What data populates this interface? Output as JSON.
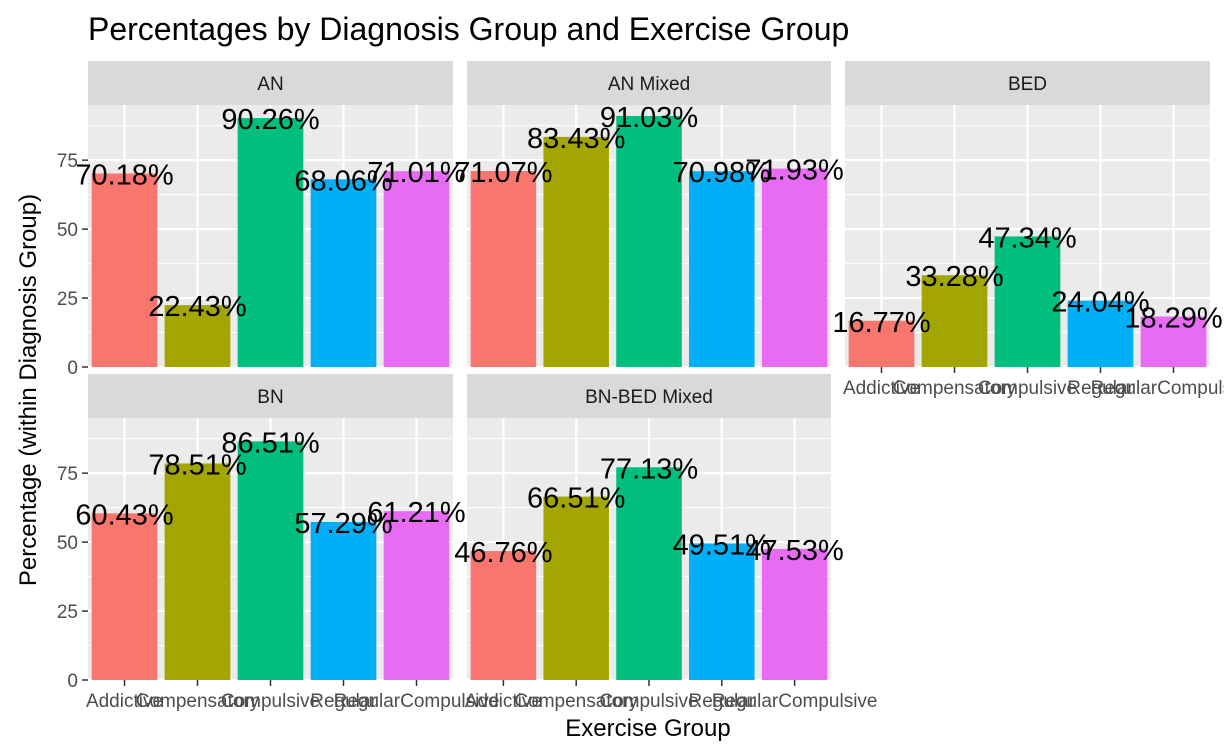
{
  "chart_data": {
    "type": "bar",
    "title": "Percentages by Diagnosis Group and Exercise Group",
    "xlabel": "Exercise Group",
    "ylabel": "Percentage (within Diagnosis Group)",
    "ylim": [
      0,
      95
    ],
    "yticks": [
      0,
      25,
      50,
      75
    ],
    "categories": [
      "Addictive",
      "Compensatory",
      "Compulsive",
      "Regular",
      "RegularCompulsive"
    ],
    "colors": [
      "#F8766D",
      "#A3A500",
      "#00BF7D",
      "#00B0F6",
      "#E76BF3"
    ],
    "panel_background": "#EBEBEB",
    "strip_background": "#D9D9D9",
    "grid": true,
    "legend": "none",
    "x_tick_labels_visible_on": [
      "BED",
      "BN",
      "BN-BED Mixed"
    ],
    "panels": [
      {
        "name": "AN",
        "values": [
          70.18,
          22.43,
          90.26,
          68.06,
          71.01
        ],
        "labels": [
          "70.18%",
          "22.43%",
          "90.26%",
          "68.06%",
          "71.01%"
        ]
      },
      {
        "name": "AN Mixed",
        "values": [
          71.07,
          83.43,
          91.03,
          70.98,
          71.93
        ],
        "labels": [
          "71.07%",
          "83.43%",
          "91.03%",
          "70.98%",
          "71.93%"
        ]
      },
      {
        "name": "BED",
        "values": [
          16.77,
          33.28,
          47.34,
          24.04,
          18.29
        ],
        "labels": [
          "16.77%",
          "33.28%",
          "47.34%",
          "24.04%",
          "18.29%"
        ]
      },
      {
        "name": "BN",
        "values": [
          60.43,
          78.51,
          86.51,
          57.29,
          61.21
        ],
        "labels": [
          "60.43%",
          "78.51%",
          "86.51%",
          "57.29%",
          "61.21%"
        ]
      },
      {
        "name": "BN-BED Mixed",
        "values": [
          46.76,
          66.51,
          77.13,
          49.51,
          47.53
        ],
        "labels": [
          "46.76%",
          "66.51%",
          "77.13%",
          "49.51%",
          "47.53%"
        ]
      }
    ]
  }
}
